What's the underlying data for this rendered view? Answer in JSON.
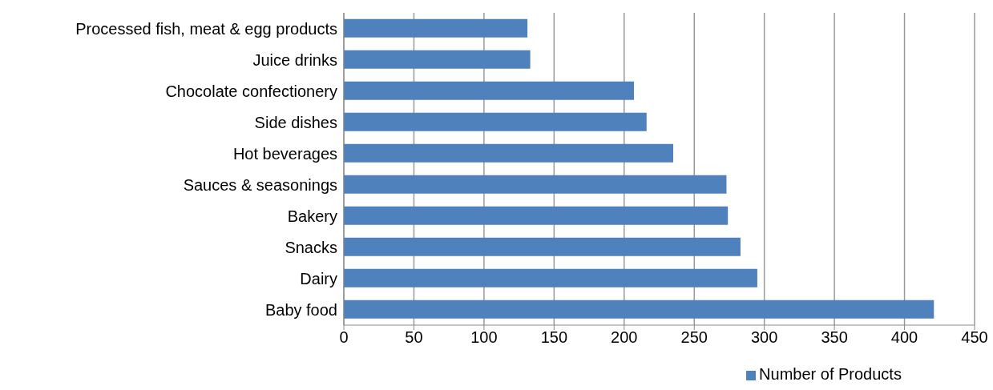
{
  "chart_data": {
    "type": "bar",
    "orientation": "horizontal",
    "categories": [
      "Processed fish, meat & egg products",
      "Juice drinks",
      "Chocolate confectionery",
      "Side dishes",
      "Hot beverages",
      "Sauces & seasonings",
      "Bakery",
      "Snacks",
      "Dairy",
      "Baby food"
    ],
    "series": [
      {
        "name": "Number of Products",
        "color": "#4f81bd",
        "values": [
          131,
          133,
          207,
          216,
          235,
          273,
          274,
          283,
          295,
          421
        ]
      }
    ],
    "xlim": [
      0,
      450
    ],
    "xticks": [
      0,
      50,
      100,
      150,
      200,
      250,
      300,
      350,
      400,
      450
    ],
    "grid": "x",
    "legend": "bottom"
  }
}
